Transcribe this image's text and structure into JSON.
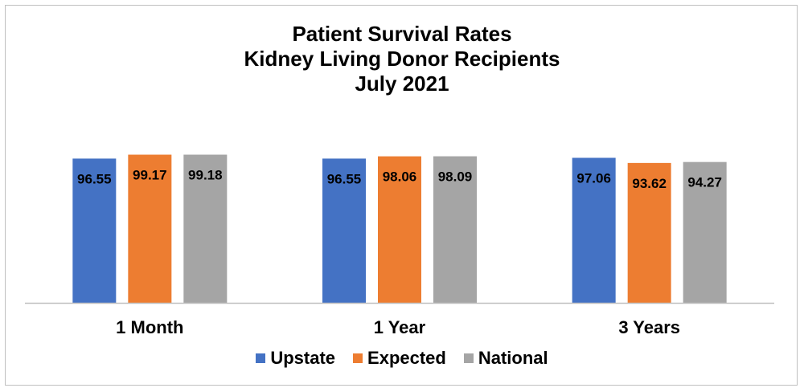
{
  "chart_data": {
    "type": "bar",
    "title_lines": [
      "Patient Survival Rates",
      "Kidney Living Donor Recipients",
      "July 2021"
    ],
    "categories": [
      "1 Month",
      "1 Year",
      "3 Years"
    ],
    "series": [
      {
        "name": "Upstate",
        "color": "#4472c4",
        "values": [
          96.55,
          96.55,
          97.06
        ],
        "labels": [
          "96.55",
          "96.55",
          "97.06"
        ]
      },
      {
        "name": "Expected",
        "color": "#ed7d31",
        "values": [
          99.17,
          98.06,
          93.62
        ],
        "labels": [
          "99.17",
          "98.06",
          "93.62"
        ]
      },
      {
        "name": "National",
        "color": "#a5a5a5",
        "values": [
          99.18,
          98.09,
          94.27
        ],
        "labels": [
          "99.18",
          "98.09",
          "94.27"
        ]
      }
    ],
    "ylim": [
      0,
      100
    ],
    "grid": false,
    "legend_position": "bottom",
    "xlabel": "",
    "ylabel": ""
  }
}
